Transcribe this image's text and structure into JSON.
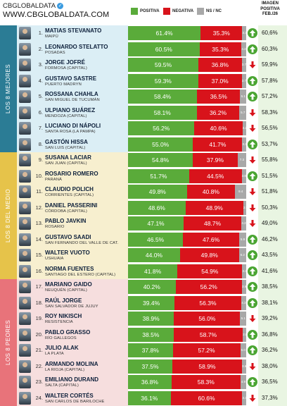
{
  "brand": {
    "handle": "CBGLOBALDATA",
    "url": "WWW.CBGLOBALDATA.COM"
  },
  "legend": {
    "positive": "POSITIVA",
    "negative": "NEGATIVA",
    "ns": "NS / NC"
  },
  "imagen_column": {
    "line1": "IMAGEN",
    "line2": "POSITIVA",
    "line3": "FEB./26"
  },
  "colors": {
    "positive": "#5aab3a",
    "negative": "#d8131b",
    "ns": "#a8a8a8",
    "top_band": "#dbeef5",
    "mid_band": "#f7efcf",
    "bottom_band": "#f6dede",
    "top_side": "#2b7c95",
    "mid_side": "#e6c34a",
    "bottom_side": "#e8737a"
  },
  "groups": [
    {
      "label": "LOS 8 MEJORES"
    },
    {
      "label": "LOS 8 DEL MEDIO"
    },
    {
      "label": "LOS 8 PEORES"
    }
  ],
  "chart_data": {
    "type": "bar",
    "stacked": true,
    "title": "",
    "series_names": [
      "POSITIVA",
      "NEGATIVA",
      "NS / NC"
    ],
    "rows": [
      {
        "rank": "1.",
        "name": "MATIAS STEVANATO",
        "place": "MAIPÚ",
        "pos": 61.4,
        "neg": 35.3,
        "ns": 3.3,
        "pos_label": "61.4%",
        "neg_label": "35.3%",
        "ns_label": "3.3",
        "trend": "up",
        "imagen": "60,6%"
      },
      {
        "rank": "2.",
        "name": "LEONARDO STELATTO",
        "place": "POSADAS",
        "pos": 60.5,
        "neg": 35.3,
        "ns": 4.2,
        "pos_label": "60.5%",
        "neg_label": "35.3%",
        "ns_label": "4.2",
        "trend": "up",
        "imagen": "60,3%"
      },
      {
        "rank": "3.",
        "name": "JORGE JOFRÉ",
        "place": "FORMOSA (CAPITAL)",
        "pos": 59.5,
        "neg": 36.8,
        "ns": 3.7,
        "pos_label": "59.5%",
        "neg_label": "36.8%",
        "ns_label": "3.7",
        "trend": "down",
        "imagen": "59,9%"
      },
      {
        "rank": "4.",
        "name": "GUSTAVO SASTRE",
        "place": "PUERTO MADRYN",
        "pos": 59.3,
        "neg": 37.0,
        "ns": 3.7,
        "pos_label": "59.3%",
        "neg_label": "37.0%",
        "ns_label": "3.7",
        "trend": "up",
        "imagen": "57,8%"
      },
      {
        "rank": "5.",
        "name": "ROSSANA CHAHLA",
        "place": "SAN MIGUEL DE TUCUMÁN",
        "pos": 58.4,
        "neg": 36.5,
        "ns": 5.1,
        "pos_label": "58.4%",
        "neg_label": "36.5%",
        "ns_label": "5.1",
        "trend": "up",
        "imagen": "57,2%"
      },
      {
        "rank": "6.",
        "name": "ULPIANO SUÁREZ",
        "place": "MENDOZA (CAPITAL)",
        "pos": 58.1,
        "neg": 36.2,
        "ns": 5.7,
        "pos_label": "58.1%",
        "neg_label": "36.2%",
        "ns_label": "5.7",
        "trend": "down",
        "imagen": "58,3%"
      },
      {
        "rank": "7.",
        "name": "LUCIANO DI NÁPOLI",
        "place": "SANTA ROSA (LA PAMPA)",
        "pos": 56.2,
        "neg": 40.6,
        "ns": 3.2,
        "pos_label": "56.2%",
        "neg_label": "40.6%",
        "ns_label": "3.2",
        "trend": "down",
        "imagen": "56,5%"
      },
      {
        "rank": "8.",
        "name": "GASTÓN HISSA",
        "place": "SAN LUIS (CAPITAL)",
        "pos": 55.0,
        "neg": 41.7,
        "ns": 3.3,
        "pos_label": "55.0%",
        "neg_label": "41.7%",
        "ns_label": "3.3",
        "trend": "up",
        "imagen": "53,7%"
      },
      {
        "rank": "9.",
        "name": "SUSANA LACIAR",
        "place": "SAN JUAN (CAPITAL)",
        "pos": 54.8,
        "neg": 37.9,
        "ns": 7.3,
        "pos_label": "54.8%",
        "neg_label": "37.9%",
        "ns_label": "7.3",
        "trend": "down",
        "imagen": "55,8%"
      },
      {
        "rank": "10.",
        "name": "ROSARIO ROMERO",
        "place": "PARANÁ",
        "pos": 51.7,
        "neg": 44.5,
        "ns": 3.8,
        "pos_label": "51.7%",
        "neg_label": "44.5%",
        "ns_label": "3.8",
        "trend": "up",
        "imagen": "51,5%"
      },
      {
        "rank": "11.",
        "name": "CLAUDIO POLICH",
        "place": "CORRIENTES (CAPITAL)",
        "pos": 49.8,
        "neg": 40.8,
        "ns": 9.4,
        "pos_label": "49.8%",
        "neg_label": "40.8%",
        "ns_label": "9.4",
        "trend": "down",
        "imagen": "51,8%"
      },
      {
        "rank": "12.",
        "name": "DANIEL PASSERINI",
        "place": "CÓRDOBA (CAPITAL)",
        "pos": 48.6,
        "neg": 48.9,
        "ns": 2.5,
        "pos_label": "48.6%",
        "neg_label": "48.9%",
        "ns_label": "2.5",
        "trend": "down",
        "imagen": "50,3%"
      },
      {
        "rank": "13.",
        "name": "PABLO JAVKIN",
        "place": "ROSARIO",
        "pos": 47.1,
        "neg": 48.7,
        "ns": 4.2,
        "pos_label": "47.1%",
        "neg_label": "48.7%",
        "ns_label": "4.2",
        "trend": "down",
        "imagen": "49,0%"
      },
      {
        "rank": "14.",
        "name": "GUSTAVO SAADI",
        "place": "SAN FERNANDO DEL VALLE DE CAT.",
        "pos": 46.5,
        "neg": 47.6,
        "ns": 5.9,
        "pos_label": "46.5%",
        "neg_label": "47.6%",
        "ns_label": "5.9",
        "trend": "up",
        "imagen": "46,2%"
      },
      {
        "rank": "15.",
        "name": "WALTER VUOTO",
        "place": "USHUAIA",
        "pos": 44.0,
        "neg": 49.8,
        "ns": 6.2,
        "pos_label": "44.0%",
        "neg_label": "49.8%",
        "ns_label": "6.2",
        "trend": "up",
        "imagen": "43,5%"
      },
      {
        "rank": "16.",
        "name": "NORMA FUENTES",
        "place": "SANTIAGO DEL ESTERO (CAPITAL)",
        "pos": 41.8,
        "neg": 54.9,
        "ns": 3.3,
        "pos_label": "41.8%",
        "neg_label": "54.9%",
        "ns_label": "3.3",
        "trend": "up",
        "imagen": "41,6%"
      },
      {
        "rank": "17.",
        "name": "MARIANO GAIDO",
        "place": "NEUQUÉN (CAPITAL)",
        "pos": 40.2,
        "neg": 56.2,
        "ns": 3.6,
        "pos_label": "40.2%",
        "neg_label": "56.2%",
        "ns_label": "3.6",
        "trend": "up",
        "imagen": "38,5%"
      },
      {
        "rank": "18.",
        "name": "RAÚL JORGE",
        "place": "SAN SALVADOR DE JUJUY",
        "pos": 39.4,
        "neg": 56.3,
        "ns": 4.3,
        "pos_label": "39.4%",
        "neg_label": "56.3%",
        "ns_label": "4.3",
        "trend": "up",
        "imagen": "38,1%"
      },
      {
        "rank": "19.",
        "name": "ROY NIKISCH",
        "place": "RESISTENCIA",
        "pos": 38.9,
        "neg": 56.0,
        "ns": 5.1,
        "pos_label": "38.9%",
        "neg_label": "56.0%",
        "ns_label": "5.1",
        "trend": "down",
        "imagen": "39,2%"
      },
      {
        "rank": "20.",
        "name": "PABLO GRASSO",
        "place": "RÍO GALLEGOS",
        "pos": 38.5,
        "neg": 58.7,
        "ns": 2.8,
        "pos_label": "38.5%",
        "neg_label": "58.7%",
        "ns_label": "2.8",
        "trend": "up",
        "imagen": "36,8%"
      },
      {
        "rank": "21.",
        "name": "JULIO ALAK",
        "place": "LA PLATA",
        "pos": 37.8,
        "neg": 57.2,
        "ns": 5.0,
        "pos_label": "37.8%",
        "neg_label": "57.2%",
        "ns_label": "5.0",
        "trend": "up",
        "imagen": "36,2%"
      },
      {
        "rank": "22.",
        "name": "ARMANDO MOLINA",
        "place": "LA RIOJA (CAPITAL)",
        "pos": 37.5,
        "neg": 58.9,
        "ns": 3.6,
        "pos_label": "37.5%",
        "neg_label": "58.9%",
        "ns_label": "3.6",
        "trend": "down",
        "imagen": "38,0%"
      },
      {
        "rank": "23.",
        "name": "EMILIANO DURAND",
        "place": "SALTA (CAPITAL)",
        "pos": 36.8,
        "neg": 58.3,
        "ns": 4.9,
        "pos_label": "36.8%",
        "neg_label": "58.3%",
        "ns_label": "4.9",
        "trend": "up",
        "imagen": "36,5%"
      },
      {
        "rank": "24.",
        "name": "WALTER CORTÉS",
        "place": "SAN CARLOS DE BARILOCHE",
        "pos": 36.1,
        "neg": 60.6,
        "ns": 3.3,
        "pos_label": "36.1%",
        "neg_label": "60.6%",
        "ns_label": "3.3",
        "trend": "down",
        "imagen": "37,3%"
      }
    ]
  }
}
